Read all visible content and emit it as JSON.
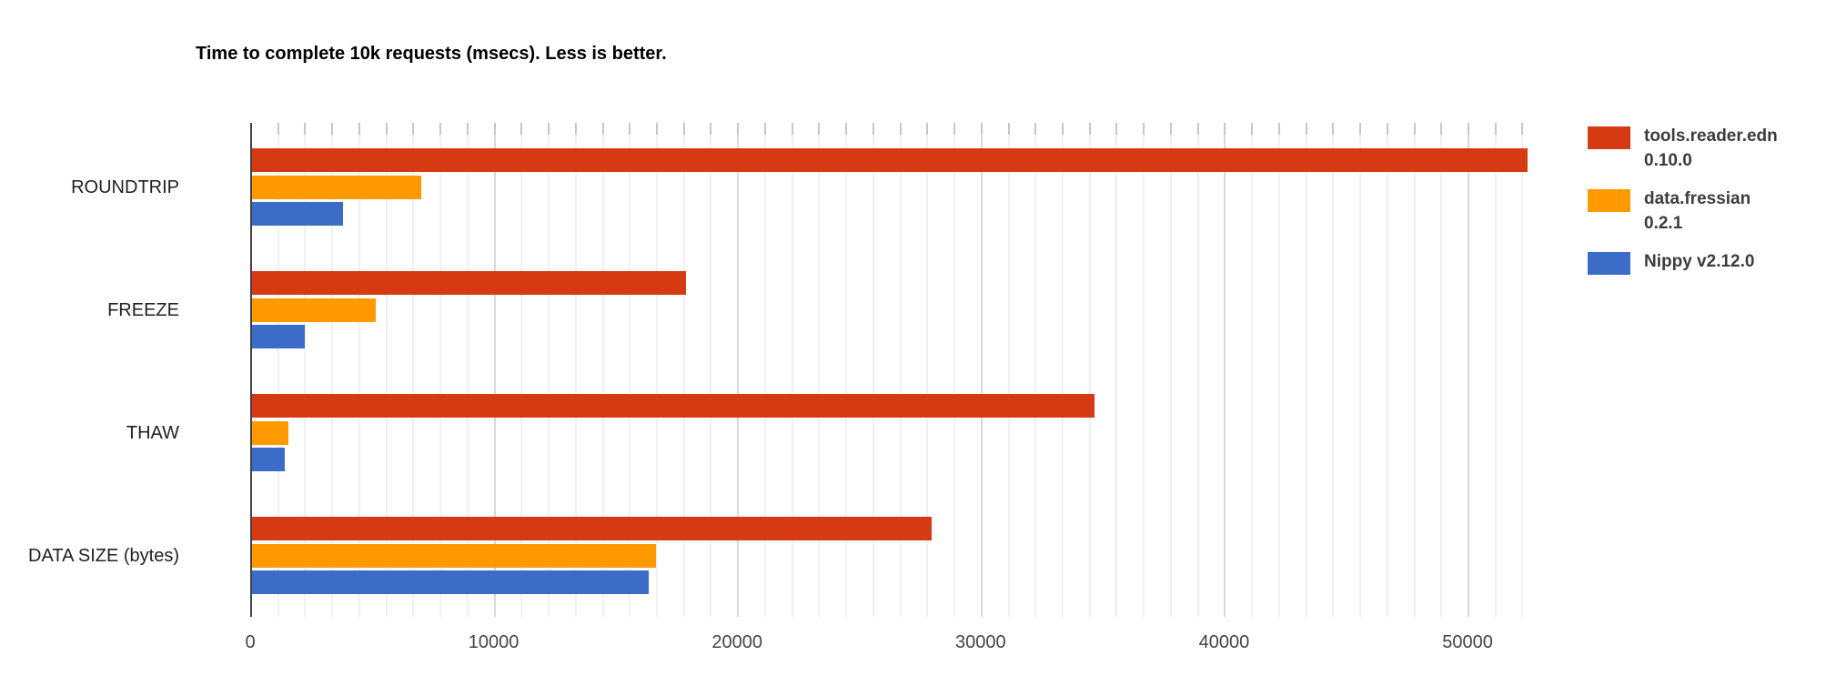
{
  "chart_data": {
    "type": "bar",
    "orientation": "horizontal",
    "title": "Time to complete 10k requests (msecs). Less is better.",
    "categories": [
      "ROUNDTRIP",
      "FREEZE",
      "THAW",
      "DATA SIZE (bytes)"
    ],
    "series": [
      {
        "name": "tools.reader.edn 0.10.0",
        "label_lines": [
          "tools.reader.edn",
          "0.10.0"
        ],
        "color": "#D53A13",
        "values": [
          52400,
          17830,
          34600,
          27900
        ]
      },
      {
        "name": "data.fressian 0.2.1",
        "label_lines": [
          "data.fressian",
          "0.2.1"
        ],
        "color": "#FF9900",
        "values": [
          6950,
          5080,
          1500,
          16600
        ]
      },
      {
        "name": "Nippy v2.12.0",
        "label_lines": [
          "Nippy v2.12.0"
        ],
        "color": "#3B6CC8",
        "values": [
          3740,
          2170,
          1330,
          16300
        ]
      }
    ],
    "x_ticks": [
      0,
      10000,
      20000,
      30000,
      40000,
      50000
    ],
    "xlim": [
      0,
      53250
    ],
    "minor_tick_interval": 1111.11,
    "ylabel": "",
    "xlabel": "",
    "grid": true,
    "legend_position": "right"
  },
  "colors": {
    "axis_line": "#424242",
    "major_gridline": "#d9d9d9",
    "minor_gridline": "#f0f0f0",
    "tick_label": "#444444",
    "category_label": "#212121",
    "title": "#000000"
  }
}
